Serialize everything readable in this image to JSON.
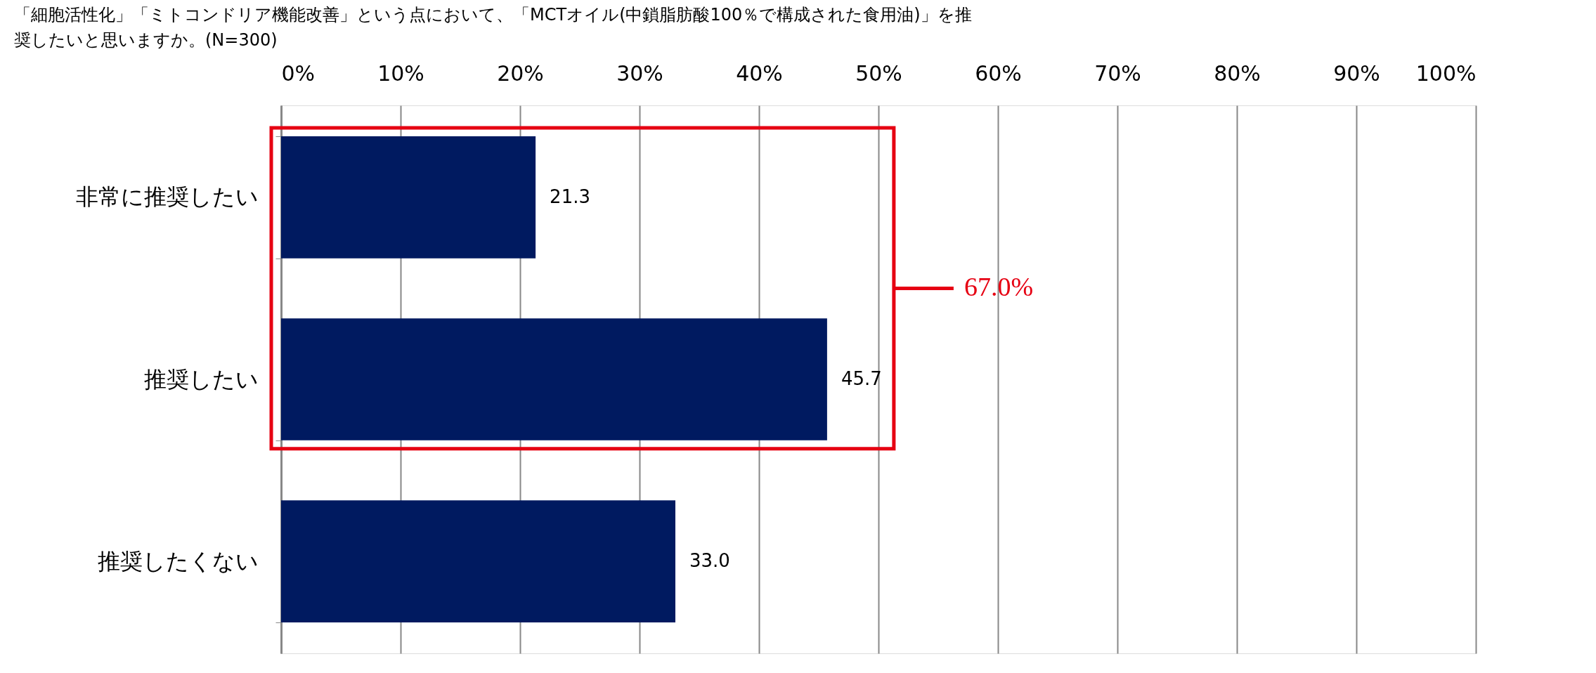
{
  "chart_data": {
    "type": "bar",
    "orientation": "horizontal",
    "title": [
      "「細胞活性化」「ミトコンドリア機能改善」という点において、「MCTオイル(中鎖脂肪酸100％で構成された食用油)」を推",
      "奨したいと思いますか。(N=300)"
    ],
    "categories": [
      "非常に推奨したい",
      "推奨したい",
      "推奨したくない"
    ],
    "values": [
      21.3,
      45.7,
      33.0
    ],
    "value_labels": [
      "21.3",
      "45.7",
      "33.0"
    ],
    "color": "#001a60",
    "xlim": [
      0,
      100
    ],
    "xticks": [
      {
        "value": 0,
        "label": "0%"
      },
      {
        "value": 10,
        "label": "10%"
      },
      {
        "value": 20,
        "label": "20%"
      },
      {
        "value": 30,
        "label": "30%"
      },
      {
        "value": 40,
        "label": "40%"
      },
      {
        "value": 50,
        "label": "50%"
      },
      {
        "value": 60,
        "label": "60%"
      },
      {
        "value": 70,
        "label": "70%"
      },
      {
        "value": 80,
        "label": "80%"
      },
      {
        "value": 90,
        "label": "90%"
      },
      {
        "value": 100,
        "label": "100%"
      }
    ],
    "grid": "x",
    "annotations": [
      "67.0%"
    ]
  }
}
